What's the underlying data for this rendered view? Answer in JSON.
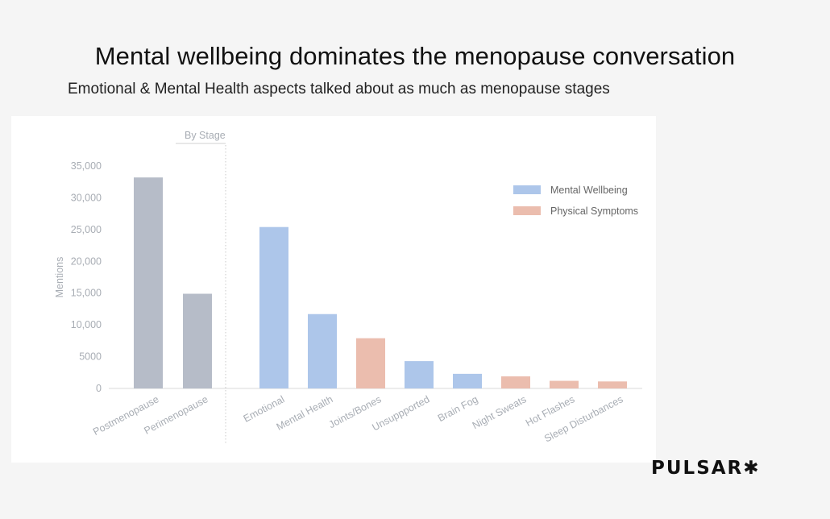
{
  "header": {
    "title": "Mental wellbeing dominates the menopause conversation",
    "subtitle": "Emotional & Mental Health aspects talked about as much as menopause stages"
  },
  "brand": {
    "name": "PULSAR",
    "mark": "✱"
  },
  "colors": {
    "stage": "#b6bcc8",
    "mental": "#adc6ea",
    "physical": "#ebbdae",
    "axis_text": "#a8adb4",
    "grid": "#e6e6e6"
  },
  "chart_data": {
    "type": "bar",
    "title": "Mental wellbeing dominates the menopause conversation",
    "xlabel": "",
    "ylabel": "Mentions",
    "ylim": [
      0,
      35000
    ],
    "yticks": [
      0,
      5000,
      10000,
      15000,
      20000,
      25000,
      30000,
      35000
    ],
    "ytick_labels": [
      "0",
      "5000",
      "10,000",
      "15,000",
      "20,000",
      "25,000",
      "30,000",
      "35,000"
    ],
    "section_label": "By Stage",
    "legend": [
      {
        "name": "Mental Wellbeing",
        "group": "mental"
      },
      {
        "name": "Physical Symptoms",
        "group": "physical"
      }
    ],
    "categories": [
      "Postmenopause",
      "Perimenopause",
      "Emotional",
      "Mental Health",
      "Joints/Bones",
      "Unsuppported",
      "Brain Fog",
      "Night Sweats",
      "Hot Flashes",
      "Sleep Disturbances"
    ],
    "values": [
      33200,
      14900,
      25400,
      11700,
      7900,
      4300,
      2300,
      1900,
      1200,
      1100
    ],
    "groups": [
      "stage",
      "stage",
      "mental",
      "mental",
      "physical",
      "mental",
      "mental",
      "physical",
      "physical",
      "physical"
    ]
  }
}
